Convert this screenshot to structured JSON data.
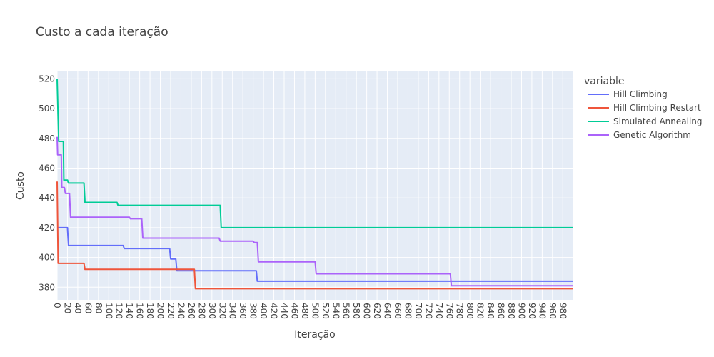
{
  "chart_data": {
    "type": "line",
    "title": "Custo a cada iteração",
    "xlabel": "Iteração",
    "ylabel": "Custo",
    "xlim": [
      0,
      999
    ],
    "ylim": [
      371.5,
      525
    ],
    "xticks": [
      0,
      20,
      40,
      60,
      80,
      100,
      120,
      140,
      160,
      180,
      200,
      220,
      240,
      260,
      280,
      300,
      320,
      340,
      360,
      380,
      400,
      420,
      440,
      460,
      480,
      500,
      520,
      540,
      560,
      580,
      600,
      620,
      640,
      660,
      680,
      700,
      720,
      740,
      760,
      780,
      800,
      820,
      840,
      860,
      880,
      900,
      920,
      940,
      960,
      980
    ],
    "yticks": [
      380,
      400,
      420,
      440,
      460,
      480,
      500,
      520
    ],
    "legend_title": "variable",
    "series": [
      {
        "name": "Hill Climbing",
        "color": "#636efa",
        "points": [
          [
            0,
            420
          ],
          [
            20,
            420
          ],
          [
            22,
            408
          ],
          [
            128,
            408
          ],
          [
            130,
            406
          ],
          [
            218,
            406
          ],
          [
            220,
            399
          ],
          [
            230,
            399
          ],
          [
            232,
            391
          ],
          [
            386,
            391
          ],
          [
            388,
            384
          ],
          [
            999,
            384
          ]
        ]
      },
      {
        "name": "Hill Climbing Restart",
        "color": "#ef553b",
        "points": [
          [
            0,
            451
          ],
          [
            2,
            396
          ],
          [
            52,
            396
          ],
          [
            54,
            392
          ],
          [
            266,
            392
          ],
          [
            268,
            379
          ],
          [
            999,
            379
          ]
        ]
      },
      {
        "name": "Simulated Annealing",
        "color": "#00cc96",
        "points": [
          [
            0,
            520
          ],
          [
            3,
            478
          ],
          [
            12,
            478
          ],
          [
            13,
            452
          ],
          [
            20,
            452
          ],
          [
            22,
            450
          ],
          [
            52,
            450
          ],
          [
            54,
            437
          ],
          [
            116,
            437
          ],
          [
            118,
            435
          ],
          [
            316,
            435
          ],
          [
            318,
            420
          ],
          [
            999,
            420
          ]
        ]
      },
      {
        "name": "Genetic Algorithm",
        "color": "#ab63fa",
        "points": [
          [
            0,
            481
          ],
          [
            1,
            469
          ],
          [
            8,
            469
          ],
          [
            9,
            447
          ],
          [
            14,
            447
          ],
          [
            16,
            443
          ],
          [
            24,
            443
          ],
          [
            26,
            427
          ],
          [
            140,
            427
          ],
          [
            142,
            426
          ],
          [
            164,
            426
          ],
          [
            166,
            413
          ],
          [
            314,
            413
          ],
          [
            316,
            411
          ],
          [
            380,
            411
          ],
          [
            382,
            410
          ],
          [
            388,
            410
          ],
          [
            390,
            397
          ],
          [
            500,
            397
          ],
          [
            502,
            389
          ],
          [
            762,
            389
          ],
          [
            764,
            381
          ],
          [
            999,
            381
          ]
        ]
      }
    ]
  }
}
